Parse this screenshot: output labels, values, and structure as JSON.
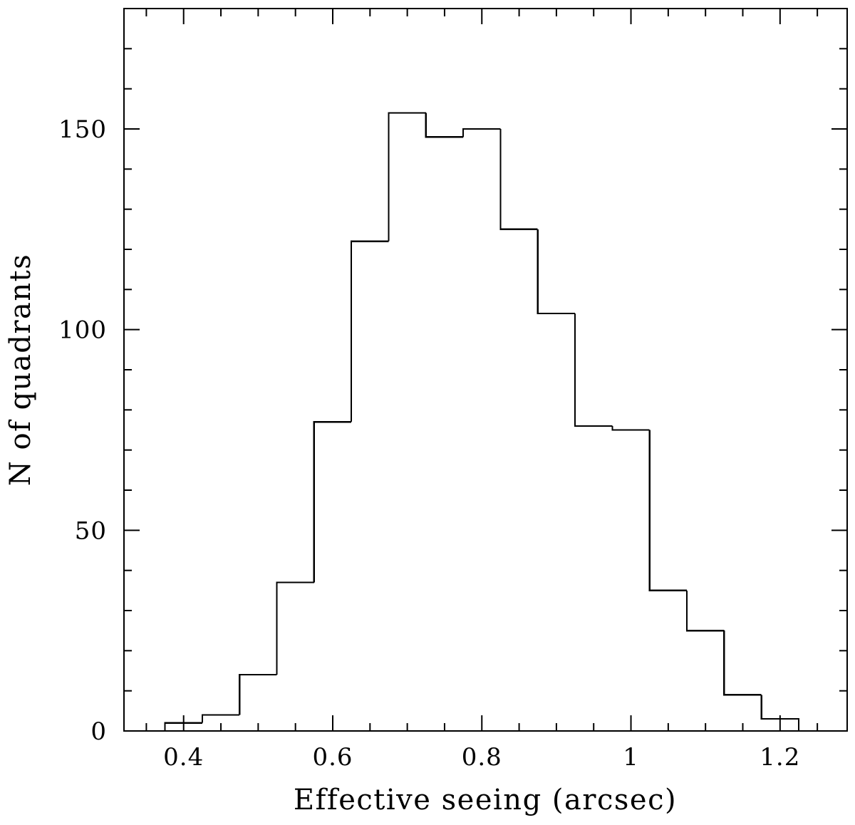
{
  "chart_data": {
    "type": "histogram",
    "title": "",
    "xlabel": "Effective seeing (arcsec)",
    "ylabel": "N of quadrants",
    "xlim": [
      0.32,
      1.29
    ],
    "ylim": [
      0,
      180
    ],
    "x_major_ticks": [
      0.4,
      0.6,
      0.8,
      1.0,
      1.2
    ],
    "x_tick_labels": [
      "0.4",
      "0.6",
      "0.8",
      "1",
      "1.2"
    ],
    "x_minor_step": 0.05,
    "y_major_ticks": [
      0,
      50,
      100,
      150
    ],
    "y_tick_labels": [
      "0",
      "50",
      "100",
      "150"
    ],
    "y_minor_step": 10,
    "bin_width": 0.05,
    "bin_edges": [
      0.375,
      0.425,
      0.475,
      0.525,
      0.575,
      0.625,
      0.675,
      0.725,
      0.775,
      0.825,
      0.875,
      0.925,
      0.975,
      1.025,
      1.075,
      1.125,
      1.175,
      1.225
    ],
    "counts": [
      2,
      4,
      14,
      37,
      77,
      122,
      154,
      148,
      150,
      125,
      104,
      76,
      75,
      35,
      25,
      9,
      3
    ],
    "grid": false,
    "legend": "none",
    "color": "#000000"
  }
}
